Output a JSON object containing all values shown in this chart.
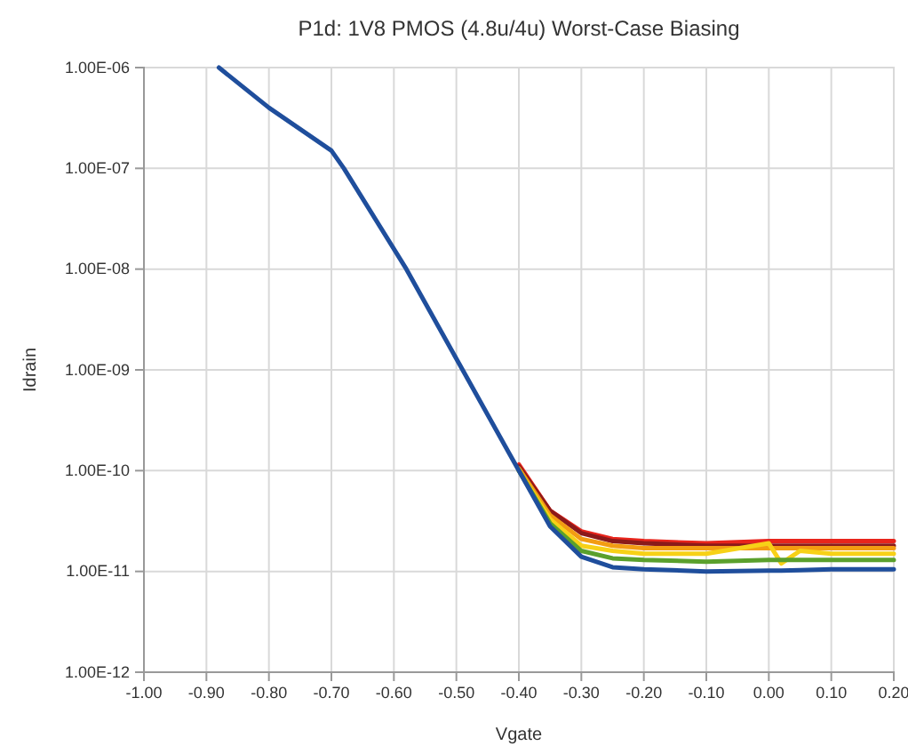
{
  "chart_data": {
    "type": "line",
    "title": "P1d: 1V8  PMOS (4.8u/4u) Worst-Case Biasing",
    "xlabel": "Vgate",
    "ylabel": "Idrain",
    "log": "y",
    "grid": true,
    "marker": "none",
    "line_style": "solid",
    "xlim": [
      -1.0,
      0.2
    ],
    "xticks": [
      {
        "value": -1.0,
        "label": "-1.00"
      },
      {
        "value": -0.9,
        "label": "-0.90"
      },
      {
        "value": -0.8,
        "label": "-0.80"
      },
      {
        "value": -0.7,
        "label": "-0.70"
      },
      {
        "value": -0.6,
        "label": "-0.60"
      },
      {
        "value": -0.5,
        "label": "-0.50"
      },
      {
        "value": -0.4,
        "label": "-0.40"
      },
      {
        "value": -0.3,
        "label": "-0.30"
      },
      {
        "value": -0.2,
        "label": "-0.20"
      },
      {
        "value": -0.1,
        "label": "-0.10"
      },
      {
        "value": 0,
        "label": "0.00"
      },
      {
        "value": 0.1,
        "label": "0.10"
      },
      {
        "value": 0.2,
        "label": "0.20"
      }
    ],
    "ylim": [
      1e-12,
      1e-06
    ],
    "yticks": [
      {
        "value": 1e-12,
        "label": "1.00E-12"
      },
      {
        "value": 1e-11,
        "label": "1.00E-11"
      },
      {
        "value": 1e-10,
        "label": "1.00E-10"
      },
      {
        "value": 1e-09,
        "label": "1.00E-09"
      },
      {
        "value": 1e-08,
        "label": "1.00E-08"
      },
      {
        "value": 1e-07,
        "label": "1.00E-07"
      },
      {
        "value": 1e-06,
        "label": "1.00E-06"
      }
    ],
    "x": [
      -0.88,
      -0.8,
      -0.7,
      -0.68,
      -0.58,
      -0.49,
      -0.4,
      -0.35,
      -0.3,
      -0.25,
      -0.2,
      -0.1,
      0,
      0.02,
      0.05,
      0.1,
      0.2
    ],
    "series": [
      {
        "color": "#e8251c",
        "values": [
          null,
          null,
          null,
          null,
          null,
          null,
          1.15e-10,
          4e-11,
          2.5e-11,
          2.1e-11,
          2e-11,
          1.9e-11,
          2e-11,
          2e-11,
          2e-11,
          2e-11,
          2e-11
        ]
      },
      {
        "color": "#8b1a1a",
        "values": [
          null,
          null,
          null,
          null,
          null,
          null,
          1.1e-10,
          4e-11,
          2.4e-11,
          2e-11,
          1.9e-11,
          1.8e-11,
          1.8e-11,
          1.8e-11,
          1.8e-11,
          1.8e-11,
          1.8e-11
        ]
      },
      {
        "color": "#f39c12",
        "values": [
          null,
          null,
          null,
          null,
          null,
          null,
          1.05e-10,
          3.6e-11,
          2.1e-11,
          1.8e-11,
          1.7e-11,
          1.7e-11,
          1.7e-11,
          1.7e-11,
          1.7e-11,
          1.7e-11,
          1.7e-11
        ]
      },
      {
        "color": "#f7d117",
        "values": [
          null,
          null,
          null,
          null,
          null,
          null,
          1e-10,
          3.3e-11,
          1.8e-11,
          1.6e-11,
          1.5e-11,
          1.5e-11,
          1.9e-11,
          1.2e-11,
          1.6e-11,
          1.5e-11,
          1.5e-11
        ]
      },
      {
        "color": "#5aa02c",
        "values": [
          null,
          null,
          null,
          null,
          null,
          null,
          1e-10,
          3e-11,
          1.6e-11,
          1.35e-11,
          1.3e-11,
          1.25e-11,
          1.3e-11,
          1.3e-11,
          1.3e-11,
          1.3e-11,
          1.3e-11
        ]
      },
      {
        "color": "#1f4e9c",
        "values": [
          1e-06,
          4e-07,
          1.5e-07,
          1e-07,
          1e-08,
          1e-09,
          1e-10,
          2.8e-11,
          1.4e-11,
          1.1e-11,
          1.05e-11,
          1e-11,
          1.02e-11,
          1.02e-11,
          1.03e-11,
          1.05e-11,
          1.05e-11
        ]
      }
    ]
  }
}
